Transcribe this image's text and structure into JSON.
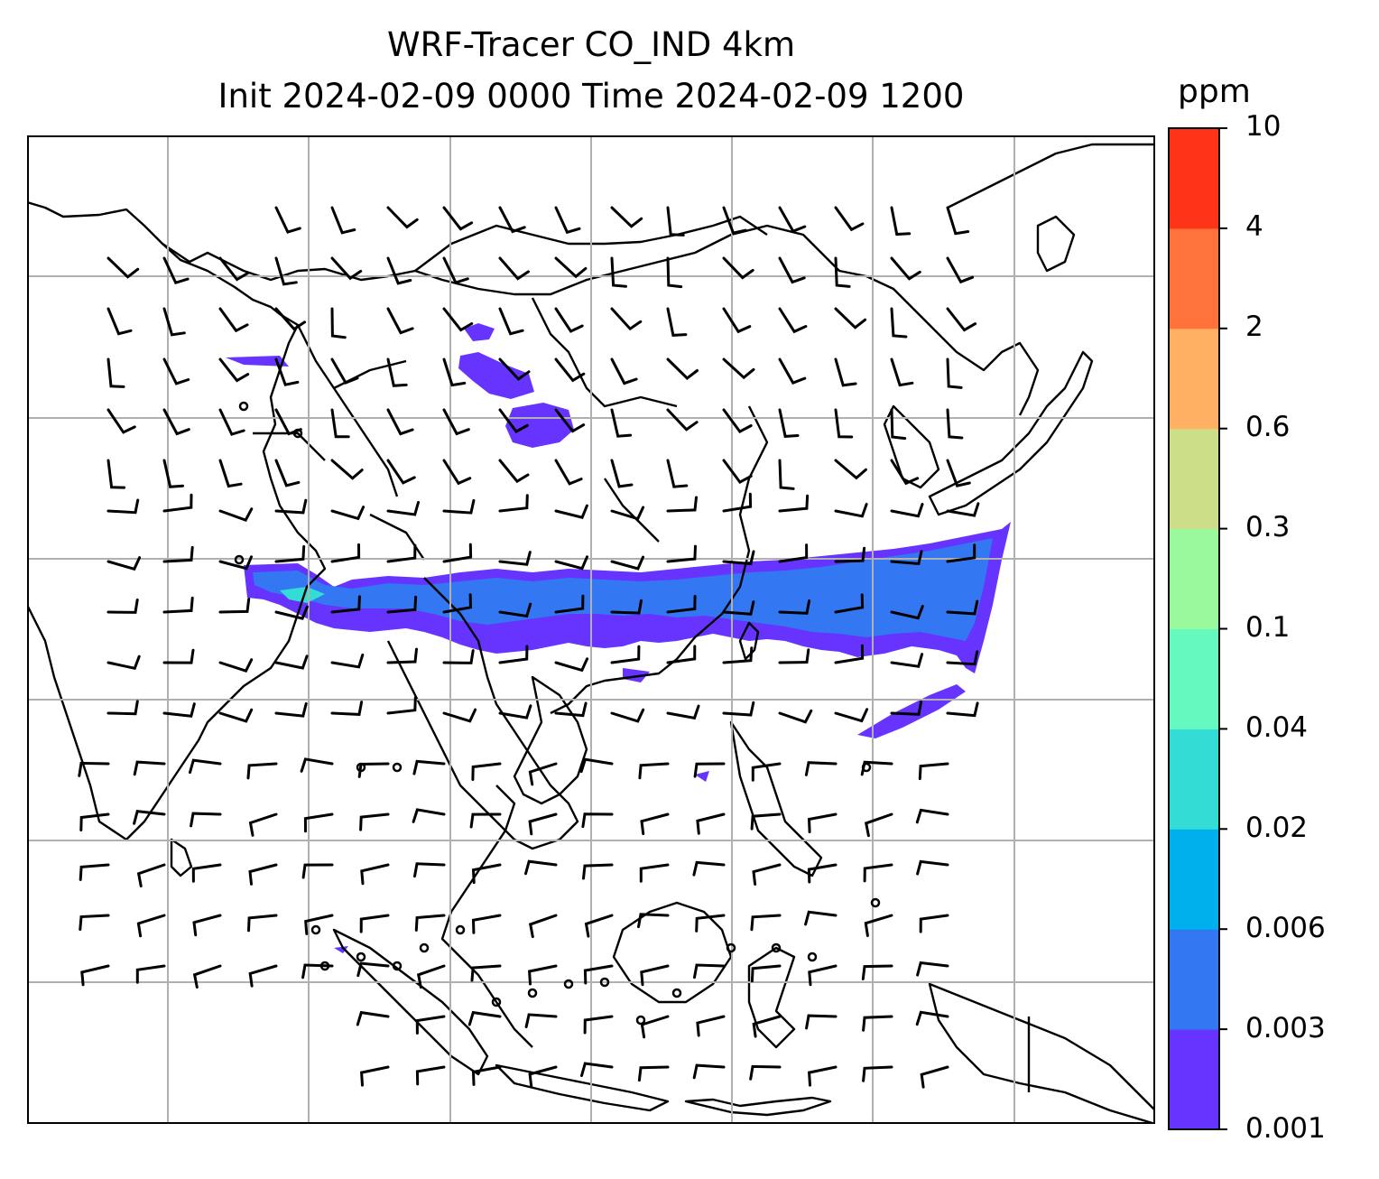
{
  "title": {
    "line1": "WRF-Tracer CO_IND 4km",
    "line2": "Init 2024-02-09 0000 Time 2024-02-09 1200"
  },
  "colorbar": {
    "unit": "ppm",
    "levels": [
      "0.001",
      "0.003",
      "0.006",
      "0.02",
      "0.04",
      "0.1",
      "0.3",
      "0.6",
      "2",
      "4",
      "10"
    ],
    "colors": [
      "#6633ff",
      "#3377f2",
      "#00b0ec",
      "#33ddd6",
      "#66f9bf",
      "#99f99c",
      "#ccdf88",
      "#ffb062",
      "#ff723c",
      "#ff3318"
    ]
  },
  "map": {
    "grid_lines": "on",
    "features": [
      "coastlines",
      "country-borders",
      "wind-barbs",
      "tracer-concentration"
    ]
  }
}
